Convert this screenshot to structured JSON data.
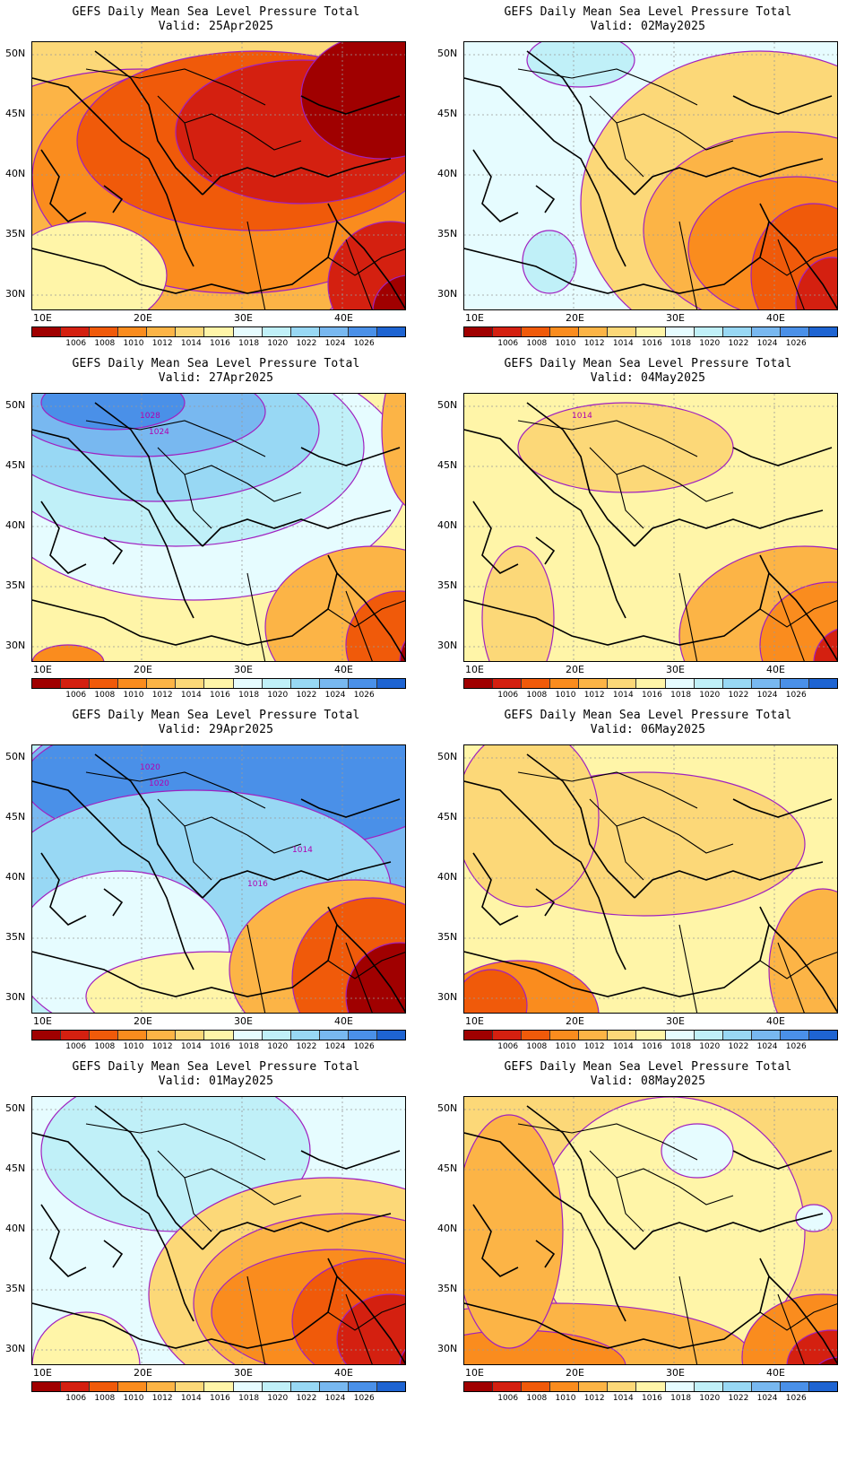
{
  "figure_title": "GEFS Daily Mean Sea Level Pressure Total",
  "lat_labels": [
    "50N",
    "45N",
    "40N",
    "35N",
    "30N"
  ],
  "lon_labels": [
    "10E",
    "20E",
    "30E",
    "40E"
  ],
  "colorbar": {
    "levels": [
      "1006",
      "1008",
      "1010",
      "1012",
      "1014",
      "1016",
      "1018",
      "1020",
      "1022",
      "1024",
      "1026"
    ],
    "colors": [
      "#a00000",
      "#d42010",
      "#f05a0a",
      "#fa8c1e",
      "#fcb446",
      "#fcd878",
      "#fff5a8",
      "#e6fcff",
      "#c0f0f8",
      "#98d8f4",
      "#78b8f0",
      "#4a90e8",
      "#1e64d2"
    ]
  },
  "panels": [
    {
      "id": "p1",
      "title": "GEFS Daily Mean Sea Level Pressure Total",
      "valid": "Valid: 25Apr2025",
      "theme": "low",
      "contour_labels": []
    },
    {
      "id": "p2",
      "title": "GEFS Daily Mean Sea Level Pressure Total",
      "valid": "Valid: 02May2025",
      "theme": "mixedhigh",
      "contour_labels": []
    },
    {
      "id": "p3",
      "title": "GEFS Daily Mean Sea Level Pressure Total",
      "valid": "Valid: 27Apr2025",
      "theme": "highnorth",
      "contour_labels": [
        "1028",
        "1024"
      ]
    },
    {
      "id": "p4",
      "title": "GEFS Daily Mean Sea Level Pressure Total",
      "valid": "Valid: 04May2025",
      "theme": "neutral",
      "contour_labels": [
        "1014"
      ]
    },
    {
      "id": "p5",
      "title": "GEFS Daily Mean Sea Level Pressure Total",
      "valid": "Valid: 29Apr2025",
      "theme": "highall",
      "contour_labels": [
        "1020",
        "1020",
        "1014",
        "1016"
      ]
    },
    {
      "id": "p6",
      "title": "GEFS Daily Mean Sea Level Pressure Total",
      "valid": "Valid: 06May2025",
      "theme": "neutral2",
      "contour_labels": []
    },
    {
      "id": "p7",
      "title": "GEFS Daily Mean Sea Level Pressure Total",
      "valid": "Valid: 01May2025",
      "theme": "mixedlow",
      "contour_labels": []
    },
    {
      "id": "p8",
      "title": "GEFS Daily Mean Sea Level Pressure Total",
      "valid": "Valid: 08May2025",
      "theme": "neutral3",
      "contour_labels": []
    }
  ]
}
